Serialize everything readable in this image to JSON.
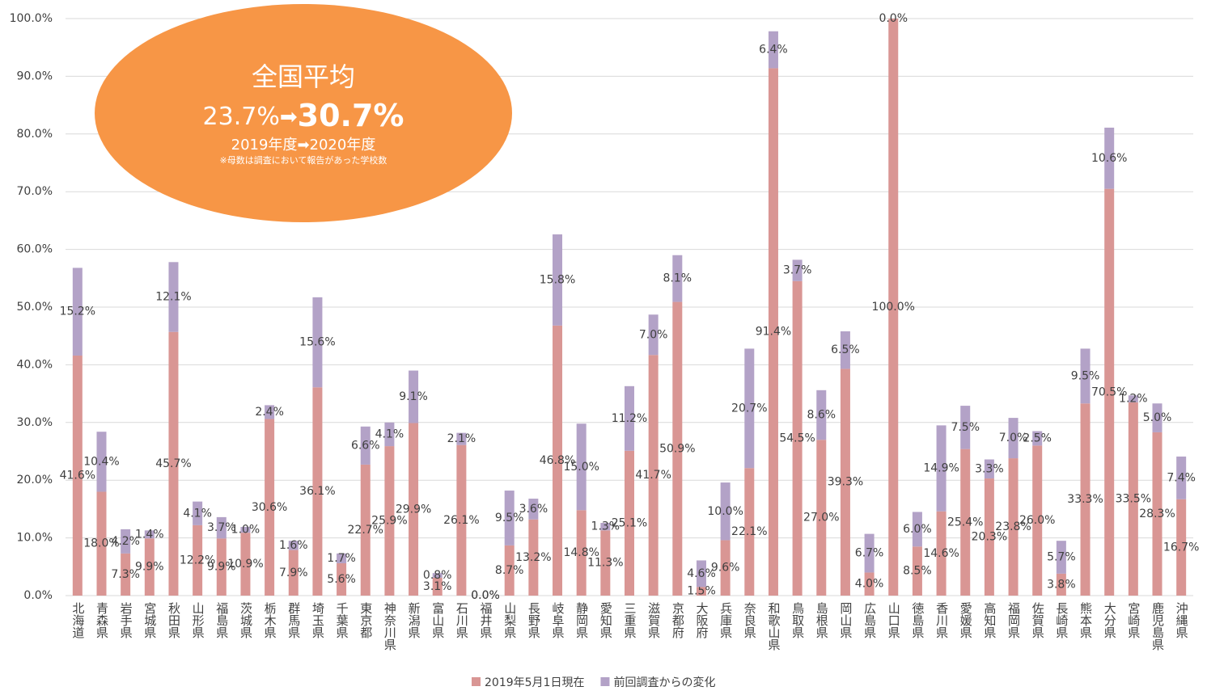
{
  "chart_data": {
    "type": "stacked_bar",
    "categories": [
      "北海道",
      "青森県",
      "岩手県",
      "宮城県",
      "秋田県",
      "山形県",
      "福島県",
      "茨城県",
      "栃木県",
      "群馬県",
      "埼玉県",
      "千葉県",
      "東京都",
      "神奈川県",
      "新潟県",
      "富山県",
      "石川県",
      "福井県",
      "山梨県",
      "長野県",
      "岐阜県",
      "静岡県",
      "愛知県",
      "三重県",
      "滋賀県",
      "京都府",
      "大阪府",
      "兵庫県",
      "奈良県",
      "和歌山県",
      "鳥取県",
      "島根県",
      "岡山県",
      "広島県",
      "山口県",
      "徳島県",
      "香川県",
      "愛媛県",
      "高知県",
      "福岡県",
      "佐賀県",
      "長崎県",
      "熊本県",
      "大分県",
      "宮崎県",
      "鹿児島県",
      "沖縄県"
    ],
    "series": [
      {
        "name": "2019年5月1日現在",
        "color": "#d99694",
        "values": [
          41.6,
          18.0,
          7.3,
          9.9,
          45.7,
          12.2,
          9.9,
          10.9,
          30.6,
          7.9,
          36.1,
          5.6,
          22.7,
          25.9,
          29.9,
          3.1,
          26.1,
          0.0,
          8.7,
          13.2,
          46.8,
          14.8,
          11.3,
          25.1,
          41.7,
          50.9,
          1.5,
          9.6,
          22.1,
          91.4,
          54.5,
          27.0,
          39.3,
          4.0,
          100.0,
          8.5,
          14.6,
          25.4,
          20.3,
          23.8,
          26.0,
          3.8,
          33.3,
          70.5,
          33.5,
          28.3,
          16.7
        ],
        "value_labels": [
          "41.6%",
          "18.0%",
          "7.3%",
          "9.9%",
          "45.7%",
          "12.2%",
          "9.9%",
          "10.9%",
          "30.6%",
          "7.9%",
          "36.1%",
          "5.6%",
          "22.7%",
          "25.9%",
          "29.9%",
          "3.1%",
          "26.1%",
          "0.0%",
          "8.7%",
          "13.2%",
          "46.8%",
          "14.8%",
          "11.3%",
          "25.1%",
          "41.7%",
          "50.9%",
          "1.5%",
          "9.6%",
          "22.1%",
          "91.4%",
          "54.5%",
          "27.0%",
          "39.3%",
          "4.0%",
          "100.0%",
          "8.5%",
          "14.6%",
          "25.4%",
          "20.3%",
          "23.8%",
          "26.0%",
          "3.8%",
          "33.3%",
          "70.5%",
          "33.5%",
          "28.3%",
          "16.7%"
        ]
      },
      {
        "name": "前回調査からの変化",
        "color": "#b3a2c7",
        "values": [
          15.2,
          10.4,
          4.2,
          1.4,
          12.1,
          4.1,
          3.7,
          1.0,
          2.4,
          1.6,
          15.6,
          1.7,
          6.6,
          4.1,
          9.1,
          0.8,
          2.1,
          0.0,
          9.5,
          3.6,
          15.8,
          15.0,
          1.3,
          11.2,
          7.0,
          8.1,
          4.6,
          10.0,
          20.7,
          6.4,
          3.7,
          8.6,
          6.5,
          6.7,
          0.0,
          6.0,
          14.9,
          7.5,
          3.3,
          7.0,
          2.5,
          5.7,
          9.5,
          10.6,
          1.2,
          5.0,
          7.4
        ],
        "value_labels": [
          "15.2%",
          "10.4%",
          "4.2%",
          "1.4%",
          "12.1%",
          "4.1%",
          "3.7%",
          "1.0%",
          "2.4%",
          "1.6%",
          "15.6%",
          "1.7%",
          "6.6%",
          "4.1%",
          "9.1%",
          "0.8%",
          "2.1%",
          "0.0%",
          "9.5%",
          "3.6%",
          "15.8%",
          "15.0%",
          "1.3%",
          "11.2%",
          "7.0%",
          "8.1%",
          "4.6%",
          "10.0%",
          "20.7%",
          "6.4%",
          "3.7%",
          "8.6%",
          "6.5%",
          "6.7%",
          "0.0%",
          "6.0%",
          "14.9%",
          "7.5%",
          "3.3%",
          "7.0%",
          "2.5%",
          "5.7%",
          "9.5%",
          "10.6%",
          "1.2%",
          "5.0%",
          "7.4%"
        ]
      }
    ],
    "ylim": [
      0,
      100
    ],
    "yticks": [
      {
        "value": 0,
        "label": "0.0%"
      },
      {
        "value": 10,
        "label": "10.0%"
      },
      {
        "value": 20,
        "label": "20.0%"
      },
      {
        "value": 30,
        "label": "30.0%"
      },
      {
        "value": 40,
        "label": "40.0%"
      },
      {
        "value": 50,
        "label": "50.0%"
      },
      {
        "value": 60,
        "label": "60.0%"
      },
      {
        "value": 70,
        "label": "70.0%"
      },
      {
        "value": 80,
        "label": "80.0%"
      },
      {
        "value": 90,
        "label": "90.0%"
      },
      {
        "value": 100,
        "label": "100.0%"
      }
    ],
    "grid": true,
    "legend": "bottom",
    "annotation": {
      "title": "全国平均",
      "from": "23.7%",
      "arrow": "➡",
      "to": "30.7%",
      "years": "2019年度➡2020年度",
      "note": "※母数は調査において報告があった学校数"
    }
  }
}
